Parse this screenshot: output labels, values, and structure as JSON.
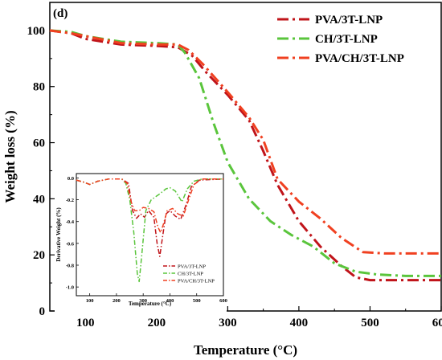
{
  "chart_data": [
    {
      "type": "line",
      "panel_label": "(d)",
      "xlabel": "Temperature (°C)",
      "ylabel": "Weight loss (%)",
      "xlim": [
        50,
        600
      ],
      "ylim": [
        0,
        110
      ],
      "xticks": [
        "100",
        "200",
        "300",
        "400",
        "500",
        "600"
      ],
      "yticks": [
        "0",
        "20",
        "40",
        "60",
        "80",
        "100"
      ],
      "grid": false,
      "legend_position": "top-right",
      "series": [
        {
          "name": "PVA/3T-LNP",
          "color": "#c0141a",
          "dash": "dash-dot",
          "points": [
            [
              50,
              100
            ],
            [
              80,
              99
            ],
            [
              100,
              97
            ],
            [
              150,
              95
            ],
            [
              200,
              94.5
            ],
            [
              230,
              94
            ],
            [
              250,
              91
            ],
            [
              270,
              85
            ],
            [
              300,
              77
            ],
            [
              330,
              68
            ],
            [
              350,
              57
            ],
            [
              370,
              45
            ],
            [
              400,
              32
            ],
            [
              430,
              23
            ],
            [
              460,
              16
            ],
            [
              480,
              12
            ],
            [
              500,
              11
            ],
            [
              550,
              11
            ],
            [
              600,
              11
            ]
          ]
        },
        {
          "name": "CH/3T-LNP",
          "color": "#5ac53c",
          "dash": "dash-dot",
          "points": [
            [
              50,
              100
            ],
            [
              80,
              99.5
            ],
            [
              100,
              98
            ],
            [
              150,
              96
            ],
            [
              200,
              95.5
            ],
            [
              230,
              95
            ],
            [
              240,
              92
            ],
            [
              260,
              83
            ],
            [
              280,
              67
            ],
            [
              300,
              53
            ],
            [
              330,
              40
            ],
            [
              360,
              32
            ],
            [
              390,
              27
            ],
            [
              420,
              23
            ],
            [
              450,
              17
            ],
            [
              480,
              14
            ],
            [
              510,
              13
            ],
            [
              550,
              12.5
            ],
            [
              600,
              12.5
            ]
          ]
        },
        {
          "name": "PVA/CH/3T-LNP",
          "color": "#f04020",
          "dash": "dash-dot",
          "points": [
            [
              50,
              100
            ],
            [
              80,
              99
            ],
            [
              100,
              98
            ],
            [
              150,
              95.5
            ],
            [
              200,
              95
            ],
            [
              230,
              95
            ],
            [
              245,
              93
            ],
            [
              265,
              88
            ],
            [
              300,
              78
            ],
            [
              330,
              69
            ],
            [
              350,
              61
            ],
            [
              370,
              47
            ],
            [
              400,
              39
            ],
            [
              430,
              33
            ],
            [
              460,
              26
            ],
            [
              490,
              21
            ],
            [
              520,
              20.5
            ],
            [
              560,
              20.5
            ],
            [
              600,
              20.5
            ]
          ]
        }
      ]
    },
    {
      "type": "line",
      "inset": true,
      "xlabel": "Temperature (°C)",
      "ylabel": "Derivative Weight (%)",
      "xlim": [
        50,
        600
      ],
      "ylim": [
        -1.08,
        0.04
      ],
      "xticks": [
        "100",
        "200",
        "300",
        "400",
        "500",
        "600"
      ],
      "yticks": [
        "0.0",
        "-0.2",
        "-0.4",
        "-0.6",
        "-0.8",
        "-1.0"
      ],
      "legend_position": "bottom-right",
      "series": [
        {
          "name": "PVA/3T-LNP",
          "color": "#c0141a",
          "dash": "dash-dot",
          "points": [
            [
              50,
              -0.02
            ],
            [
              80,
              -0.04
            ],
            [
              100,
              -0.06
            ],
            [
              130,
              -0.03
            ],
            [
              170,
              -0.01
            ],
            [
              220,
              -0.01
            ],
            [
              245,
              -0.05
            ],
            [
              260,
              -0.3
            ],
            [
              275,
              -0.37
            ],
            [
              290,
              -0.33
            ],
            [
              305,
              -0.36
            ],
            [
              320,
              -0.3
            ],
            [
              340,
              -0.36
            ],
            [
              352,
              -0.6
            ],
            [
              362,
              -0.72
            ],
            [
              372,
              -0.55
            ],
            [
              385,
              -0.33
            ],
            [
              400,
              -0.3
            ],
            [
              420,
              -0.35
            ],
            [
              440,
              -0.38
            ],
            [
              460,
              -0.25
            ],
            [
              480,
              -0.08
            ],
            [
              510,
              -0.02
            ],
            [
              600,
              -0.01
            ]
          ]
        },
        {
          "name": "CH/3T-LNP",
          "color": "#5ac53c",
          "dash": "dash-dot",
          "points": [
            [
              50,
              -0.02
            ],
            [
              80,
              -0.04
            ],
            [
              100,
              -0.06
            ],
            [
              130,
              -0.03
            ],
            [
              170,
              -0.01
            ],
            [
              220,
              -0.01
            ],
            [
              235,
              -0.05
            ],
            [
              250,
              -0.2
            ],
            [
              265,
              -0.5
            ],
            [
              278,
              -0.88
            ],
            [
              285,
              -0.95
            ],
            [
              295,
              -0.7
            ],
            [
              310,
              -0.3
            ],
            [
              330,
              -0.2
            ],
            [
              360,
              -0.15
            ],
            [
              385,
              -0.1
            ],
            [
              400,
              -0.09
            ],
            [
              420,
              -0.12
            ],
            [
              445,
              -0.22
            ],
            [
              465,
              -0.1
            ],
            [
              490,
              -0.03
            ],
            [
              520,
              -0.01
            ],
            [
              600,
              -0.01
            ]
          ]
        },
        {
          "name": "PVA/CH/3T-LNP",
          "color": "#f04020",
          "dash": "dash-dot",
          "points": [
            [
              50,
              -0.02
            ],
            [
              80,
              -0.04
            ],
            [
              100,
              -0.06
            ],
            [
              130,
              -0.03
            ],
            [
              170,
              -0.01
            ],
            [
              220,
              -0.01
            ],
            [
              240,
              -0.05
            ],
            [
              255,
              -0.22
            ],
            [
              268,
              -0.3
            ],
            [
              285,
              -0.3
            ],
            [
              300,
              -0.27
            ],
            [
              320,
              -0.28
            ],
            [
              340,
              -0.31
            ],
            [
              355,
              -0.45
            ],
            [
              365,
              -0.5
            ],
            [
              375,
              -0.43
            ],
            [
              390,
              -0.3
            ],
            [
              410,
              -0.28
            ],
            [
              430,
              -0.33
            ],
            [
              450,
              -0.35
            ],
            [
              470,
              -0.2
            ],
            [
              490,
              -0.06
            ],
            [
              520,
              -0.01
            ],
            [
              600,
              -0.01
            ]
          ]
        }
      ]
    }
  ]
}
